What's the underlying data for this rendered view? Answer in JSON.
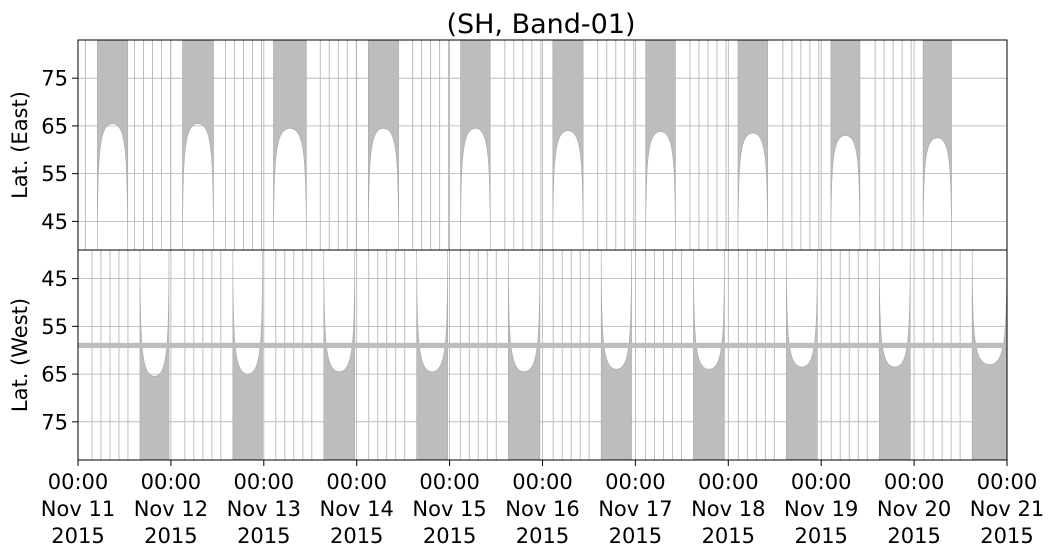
{
  "chart_data": {
    "type": "area",
    "title": "(SH, Band-01)",
    "data_color": "#bdbdbd",
    "grid": true,
    "x_range": [
      "2015-11-11 00:00",
      "2015-11-21 00:00"
    ],
    "x_ticks": [
      {
        "time": "00:00",
        "date": "Nov 11",
        "year": "2015"
      },
      {
        "time": "00:00",
        "date": "Nov 12",
        "year": "2015"
      },
      {
        "time": "00:00",
        "date": "Nov 13",
        "year": "2015"
      },
      {
        "time": "00:00",
        "date": "Nov 14",
        "year": "2015"
      },
      {
        "time": "00:00",
        "date": "Nov 15",
        "year": "2015"
      },
      {
        "time": "00:00",
        "date": "Nov 16",
        "year": "2015"
      },
      {
        "time": "00:00",
        "date": "Nov 17",
        "year": "2015"
      },
      {
        "time": "00:00",
        "date": "Nov 18",
        "year": "2015"
      },
      {
        "time": "00:00",
        "date": "Nov 19",
        "year": "2015"
      },
      {
        "time": "00:00",
        "date": "Nov 20",
        "year": "2015"
      },
      {
        "time": "00:00",
        "date": "Nov 21",
        "year": "2015"
      }
    ],
    "panels": [
      {
        "id": "east",
        "ylabel": "Lat. (East)",
        "ylim": [
          83,
          39
        ],
        "yticks": [
          45,
          55,
          65,
          75
        ],
        "coverage_lobes": [
          {
            "start": "2015-11-11 05:00",
            "end": "2015-11-11 12:50",
            "extreme_lat": 65.5
          },
          {
            "start": "2015-11-12 03:00",
            "end": "2015-11-12 11:00",
            "extreme_lat": 65.5
          },
          {
            "start": "2015-11-13 02:30",
            "end": "2015-11-13 11:00",
            "extreme_lat": 64.5
          },
          {
            "start": "2015-11-14 03:00",
            "end": "2015-11-14 10:50",
            "extreme_lat": 64.5
          },
          {
            "start": "2015-11-15 02:50",
            "end": "2015-11-15 10:30",
            "extreme_lat": 64.5
          },
          {
            "start": "2015-11-16 02:40",
            "end": "2015-11-16 10:30",
            "extreme_lat": 64.0
          },
          {
            "start": "2015-11-17 02:40",
            "end": "2015-11-17 10:20",
            "extreme_lat": 63.8
          },
          {
            "start": "2015-11-18 02:30",
            "end": "2015-11-18 10:10",
            "extreme_lat": 63.5
          },
          {
            "start": "2015-11-19 02:30",
            "end": "2015-11-19 10:00",
            "extreme_lat": 63.0
          },
          {
            "start": "2015-11-20 02:20",
            "end": "2015-11-20 09:40",
            "extreme_lat": 62.5
          }
        ]
      },
      {
        "id": "west",
        "ylabel": "Lat. (West)",
        "ylim": [
          39,
          83
        ],
        "yticks": [
          45,
          55,
          65,
          75
        ],
        "constant_band": {
          "lat": 59,
          "thickness": 1.1
        },
        "coverage_lobes": [
          {
            "start": "2015-11-11 16:00",
            "end": "2015-11-11 23:30",
            "extreme_lat": 65.5
          },
          {
            "start": "2015-11-12 16:00",
            "end": "2015-11-12 23:40",
            "extreme_lat": 65.0
          },
          {
            "start": "2015-11-13 15:30",
            "end": "2015-11-13 23:30",
            "extreme_lat": 64.5
          },
          {
            "start": "2015-11-14 15:30",
            "end": "2015-11-14 23:30",
            "extreme_lat": 64.5
          },
          {
            "start": "2015-11-15 15:10",
            "end": "2015-11-15 23:20",
            "extreme_lat": 64.5
          },
          {
            "start": "2015-11-16 15:10",
            "end": "2015-11-16 23:00",
            "extreme_lat": 64.0
          },
          {
            "start": "2015-11-17 15:00",
            "end": "2015-11-17 23:00",
            "extreme_lat": 64.0
          },
          {
            "start": "2015-11-18 15:00",
            "end": "2015-11-18 23:00",
            "extreme_lat": 63.5
          },
          {
            "start": "2015-11-19 15:00",
            "end": "2015-11-19 23:00",
            "extreme_lat": 63.5
          },
          {
            "start": "2015-11-20 15:00",
            "end": "2015-11-20 23:59",
            "extreme_lat": 63.0
          }
        ]
      }
    ]
  }
}
